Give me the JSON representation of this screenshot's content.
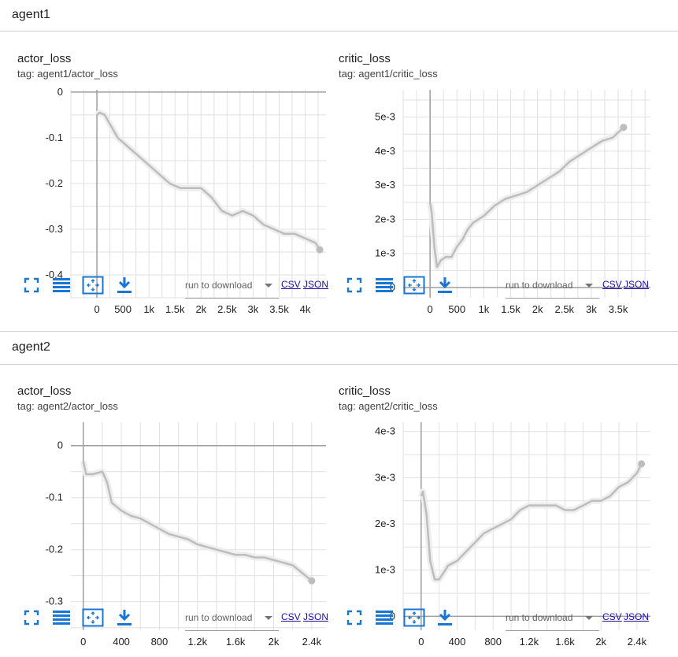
{
  "groups": [
    {
      "name": "agent1",
      "cards": [
        {
          "title": "actor_loss",
          "tag": "tag: agent1/actor_loss",
          "chart_data": {
            "type": "line",
            "title": "actor_loss",
            "xlim": [
              -500,
              4400
            ],
            "ylim": [
              -0.45,
              0.005
            ],
            "x_ticks": [
              0,
              500,
              1000,
              1500,
              2000,
              2500,
              3000,
              3500,
              4000
            ],
            "x_tick_labels": [
              "0",
              "500",
              "1k",
              "1.5k",
              "2k",
              "2.5k",
              "3k",
              "3.5k",
              "4k"
            ],
            "y_ticks": [
              0,
              -0.1,
              -0.2,
              -0.3,
              -0.4
            ],
            "y_tick_labels": [
              "0",
              "-0.1",
              "-0.2",
              "-0.3",
              "-0.4"
            ],
            "grid": true,
            "color": "#bdbdbd",
            "series": [
              {
                "x": [
                  0,
                  50,
                  150,
                  250,
                  400,
                  600,
                  800,
                  1000,
                  1200,
                  1400,
                  1600,
                  1800,
                  2000,
                  2200,
                  2400,
                  2600,
                  2800,
                  3000,
                  3200,
                  3400,
                  3600,
                  3800,
                  4000,
                  4200,
                  4280
                ],
                "y": [
                  -0.05,
                  -0.045,
                  -0.05,
                  -0.07,
                  -0.1,
                  -0.12,
                  -0.14,
                  -0.16,
                  -0.18,
                  -0.2,
                  -0.21,
                  -0.21,
                  -0.21,
                  -0.23,
                  -0.26,
                  -0.27,
                  -0.26,
                  -0.27,
                  -0.29,
                  -0.3,
                  -0.31,
                  -0.31,
                  -0.32,
                  -0.33,
                  -0.345
                ]
              }
            ]
          }
        },
        {
          "title": "critic_loss",
          "tag": "tag: agent1/critic_loss",
          "chart_data": {
            "type": "line",
            "title": "critic_loss",
            "xlim": [
              -500,
              4100
            ],
            "ylim": [
              -0.0003,
              0.0058
            ],
            "x_ticks": [
              0,
              500,
              1000,
              1500,
              2000,
              2500,
              3000,
              3500
            ],
            "x_tick_labels": [
              "0",
              "500",
              "1k",
              "1.5k",
              "2k",
              "2.5k",
              "3k",
              "3.5k"
            ],
            "y_ticks": [
              0,
              0.001,
              0.002,
              0.003,
              0.004,
              0.005
            ],
            "y_tick_labels": [
              "0",
              "1e-3",
              "2e-3",
              "3e-3",
              "4e-3",
              "5e-3"
            ],
            "grid": true,
            "color": "#bdbdbd",
            "series": [
              {
                "x": [
                  0,
                  30,
                  80,
                  130,
                  200,
                  300,
                  400,
                  500,
                  600,
                  700,
                  800,
                  1000,
                  1200,
                  1400,
                  1600,
                  1800,
                  2000,
                  2200,
                  2400,
                  2600,
                  2800,
                  3000,
                  3200,
                  3400,
                  3600
                ],
                "y": [
                  0.0025,
                  0.0022,
                  0.0012,
                  0.0006,
                  0.0008,
                  0.0009,
                  0.0009,
                  0.0012,
                  0.0014,
                  0.0017,
                  0.0019,
                  0.0021,
                  0.0024,
                  0.0026,
                  0.0027,
                  0.0028,
                  0.003,
                  0.0032,
                  0.0034,
                  0.0037,
                  0.0039,
                  0.0041,
                  0.0043,
                  0.0044,
                  0.0047
                ]
              }
            ]
          }
        }
      ]
    },
    {
      "name": "agent2",
      "cards": [
        {
          "title": "actor_loss",
          "tag": "tag: agent2/actor_loss",
          "chart_data": {
            "type": "line",
            "title": "actor_loss",
            "xlim": [
              -130,
              2550
            ],
            "ylim": [
              -0.355,
              0.045
            ],
            "x_ticks": [
              0,
              400,
              800,
              1200,
              1600,
              2000,
              2400
            ],
            "x_tick_labels": [
              "0",
              "400",
              "800",
              "1.2k",
              "1.6k",
              "2k",
              "2.4k"
            ],
            "y_ticks": [
              0,
              -0.1,
              -0.2,
              -0.3
            ],
            "y_tick_labels": [
              "0",
              "-0.1",
              "-0.2",
              "-0.3"
            ],
            "grid": true,
            "color": "#bdbdbd",
            "series": [
              {
                "x": [
                  0,
                  30,
                  100,
                  200,
                  250,
                  300,
                  400,
                  500,
                  600,
                  700,
                  800,
                  900,
                  1000,
                  1100,
                  1200,
                  1300,
                  1400,
                  1500,
                  1600,
                  1700,
                  1800,
                  1900,
                  2000,
                  2100,
                  2200,
                  2300,
                  2400
                ],
                "y": [
                  -0.03,
                  -0.055,
                  -0.055,
                  -0.05,
                  -0.07,
                  -0.11,
                  -0.125,
                  -0.135,
                  -0.14,
                  -0.15,
                  -0.16,
                  -0.17,
                  -0.175,
                  -0.18,
                  -0.19,
                  -0.195,
                  -0.2,
                  -0.205,
                  -0.21,
                  -0.21,
                  -0.215,
                  -0.215,
                  -0.22,
                  -0.225,
                  -0.23,
                  -0.245,
                  -0.26
                ]
              }
            ]
          }
        },
        {
          "title": "critic_loss",
          "tag": "tag: agent2/critic_loss",
          "chart_data": {
            "type": "line",
            "title": "critic_loss",
            "xlim": [
              -200,
              2550
            ],
            "ylim": [
              -0.0003,
              0.0042
            ],
            "x_ticks": [
              0,
              400,
              800,
              1200,
              1600,
              2000,
              2400
            ],
            "x_tick_labels": [
              "0",
              "400",
              "800",
              "1.2k",
              "1.6k",
              "2k",
              "2.4k"
            ],
            "y_ticks": [
              0,
              0.001,
              0.002,
              0.003,
              0.004
            ],
            "y_tick_labels": [
              "0",
              "1e-3",
              "2e-3",
              "3e-3",
              "4e-3"
            ],
            "grid": true,
            "color": "#bdbdbd",
            "series": [
              {
                "x": [
                  0,
                  20,
                  60,
                  100,
                  150,
                  200,
                  300,
                  400,
                  500,
                  600,
                  700,
                  800,
                  900,
                  1000,
                  1100,
                  1200,
                  1300,
                  1400,
                  1500,
                  1600,
                  1700,
                  1800,
                  1900,
                  2000,
                  2100,
                  2200,
                  2300,
                  2400,
                  2450
                ],
                "y": [
                  0.0026,
                  0.0027,
                  0.0022,
                  0.0012,
                  0.0008,
                  0.0008,
                  0.0011,
                  0.0012,
                  0.0014,
                  0.0016,
                  0.0018,
                  0.0019,
                  0.002,
                  0.0021,
                  0.0023,
                  0.0024,
                  0.0024,
                  0.0024,
                  0.0024,
                  0.0023,
                  0.0023,
                  0.0024,
                  0.0025,
                  0.0025,
                  0.0026,
                  0.0028,
                  0.0029,
                  0.0031,
                  0.0033
                ]
              }
            ]
          }
        }
      ]
    }
  ],
  "toolbar": {
    "select_label": "run to download",
    "csv_label": "CSV",
    "json_label": "JSON",
    "icon_color": "#1976d2",
    "icons": [
      "fullscreen-icon",
      "toggle-y-log-icon",
      "fit-domain-icon",
      "download-icon"
    ]
  }
}
